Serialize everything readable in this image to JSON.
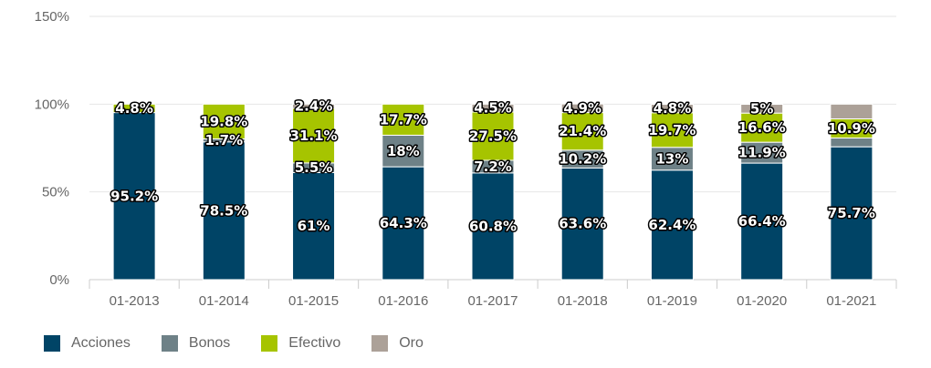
{
  "chart_data": {
    "type": "bar",
    "stacked": true,
    "categories": [
      "01-2013",
      "01-2014",
      "01-2015",
      "01-2016",
      "01-2017",
      "01-2018",
      "01-2019",
      "01-2020",
      "01-2021"
    ],
    "series": [
      {
        "name": "Acciones",
        "color": "#004466",
        "values": [
          95.2,
          78.5,
          61,
          64.3,
          60.8,
          63.6,
          62.4,
          66.4,
          75.7
        ],
        "labels": [
          "95.2%",
          "78.5%",
          "61%",
          "64.3%",
          "60.8%",
          "63.6%",
          "62.4%",
          "66.4%",
          "75.7%"
        ]
      },
      {
        "name": "Bonos",
        "color": "#6e8187",
        "values": [
          0,
          1.7,
          5.5,
          18,
          7.2,
          10.2,
          13,
          11.9,
          5
        ],
        "labels": [
          "",
          "1.7%",
          "5.5%",
          "18%",
          "7.2%",
          "10.2%",
          "13%",
          "11.9%",
          ""
        ]
      },
      {
        "name": "Efectivo",
        "color": "#a6c400",
        "values": [
          4.8,
          19.8,
          31.1,
          17.7,
          27.5,
          21.4,
          19.7,
          16.6,
          10.9
        ],
        "labels": [
          "4.8%",
          "19.8%",
          "31.1%",
          "17.7%",
          "27.5%",
          "21.4%",
          "19.7%",
          "16.6%",
          "10.9%"
        ]
      },
      {
        "name": "Oro",
        "color": "#aca198",
        "values": [
          0,
          0,
          2.4,
          0,
          4.5,
          4.9,
          4.8,
          5,
          8.4
        ],
        "labels": [
          "",
          "",
          "2.4%",
          "",
          "4.5%",
          "4.9%",
          "4.8%",
          "5%",
          ""
        ]
      }
    ],
    "y_ticks": [
      "0%",
      "50%",
      "100%",
      "150%"
    ],
    "ylim": [
      0,
      150
    ],
    "grid": true,
    "legend": "bottom-left"
  }
}
